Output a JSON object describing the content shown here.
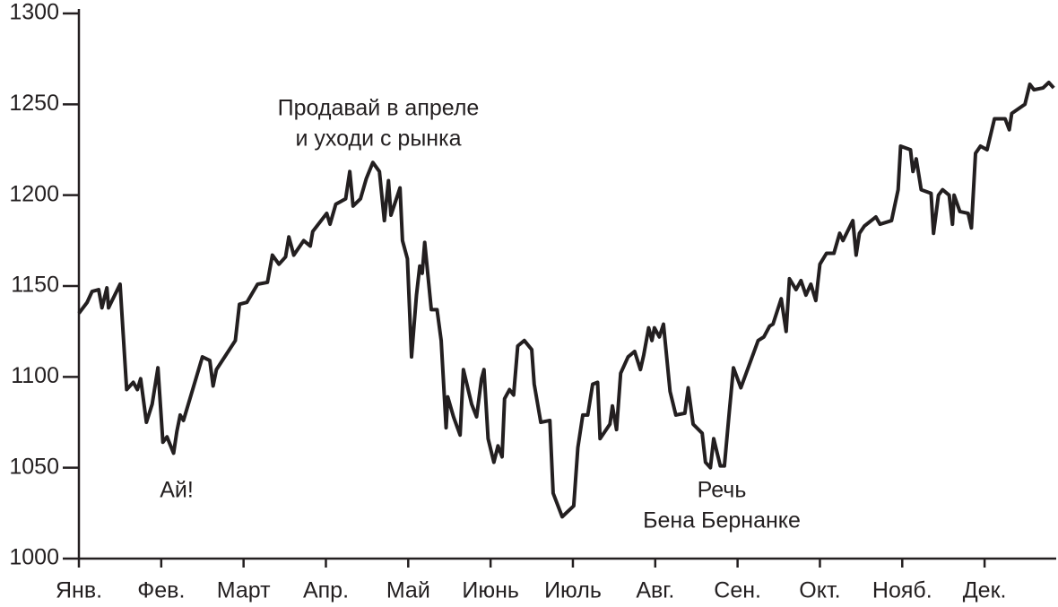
{
  "chart_data": {
    "type": "line",
    "annotations": [
      {
        "lines": [
          "Ай!"
        ]
      },
      {
        "lines": [
          "Продавай в апреле",
          "и уходи с рынка"
        ]
      },
      {
        "lines": [
          "Речь",
          "Бена Бернанке"
        ]
      }
    ],
    "xlim": [
      0,
      11.87
    ],
    "xticks": [
      {
        "value": 0,
        "label": "Янв."
      },
      {
        "value": 1,
        "label": "Фев."
      },
      {
        "value": 2,
        "label": "Март"
      },
      {
        "value": 3,
        "label": "Апр."
      },
      {
        "value": 4,
        "label": "Май"
      },
      {
        "value": 5,
        "label": "Июнь"
      },
      {
        "value": 6,
        "label": "Июль"
      },
      {
        "value": 7,
        "label": "Авг."
      },
      {
        "value": 8,
        "label": "Сен."
      },
      {
        "value": 9,
        "label": "Окт."
      },
      {
        "value": 10,
        "label": "Нояб."
      },
      {
        "value": 11,
        "label": "Дек."
      }
    ],
    "ylim": [
      1000,
      1300
    ],
    "yticks": [
      1000,
      1050,
      1100,
      1150,
      1200,
      1250,
      1300
    ],
    "grid": false,
    "series": [
      {
        "color": "#231f20",
        "x": [
          0,
          0.1,
          0.16,
          0.24,
          0.28,
          0.34,
          0.36,
          0.5,
          0.58,
          0.66,
          0.71,
          0.75,
          0.82,
          0.89,
          0.96,
          1.02,
          1.07,
          1.15,
          1.19,
          1.23,
          1.27,
          1.5,
          1.59,
          1.63,
          1.67,
          1.9,
          1.95,
          2.04,
          2.17,
          2.29,
          2.35,
          2.43,
          2.51,
          2.55,
          2.61,
          2.73,
          2.81,
          2.84,
          3.01,
          3.05,
          3.12,
          3.24,
          3.29,
          3.33,
          3.42,
          3.49,
          3.57,
          3.65,
          3.71,
          3.76,
          3.79,
          3.9,
          3.93,
          3.99,
          4.04,
          4.1,
          4.14,
          4.17,
          4.2,
          4.28,
          4.35,
          4.4,
          4.46,
          4.48,
          4.55,
          4.63,
          4.67,
          4.77,
          4.83,
          4.89,
          4.92,
          4.97,
          5.04,
          5.09,
          5.14,
          5.17,
          5.23,
          5.28,
          5.33,
          5.41,
          5.5,
          5.53,
          5.61,
          5.72,
          5.76,
          5.87,
          6.01,
          6.06,
          6.12,
          6.18,
          6.24,
          6.3,
          6.33,
          6.45,
          6.48,
          6.53,
          6.58,
          6.67,
          6.75,
          6.82,
          6.86,
          6.92,
          6.96,
          6.99,
          7.05,
          7.1,
          7.18,
          7.25,
          7.36,
          7.4,
          7.46,
          7.57,
          7.61,
          7.67,
          7.71,
          7.79,
          7.84,
          7.9,
          7.95,
          8.04,
          8.25,
          8.32,
          8.39,
          8.43,
          8.53,
          8.59,
          8.63,
          8.71,
          8.77,
          8.83,
          8.89,
          8.95,
          9.0,
          9.08,
          9.17,
          9.24,
          9.28,
          9.4,
          9.44,
          9.48,
          9.54,
          9.68,
          9.73,
          9.87,
          9.95,
          9.98,
          10.1,
          10.13,
          10.17,
          10.23,
          10.35,
          10.38,
          10.44,
          10.49,
          10.57,
          10.61,
          10.63,
          10.7,
          10.8,
          10.84,
          10.89,
          10.95,
          11.03,
          11.12,
          11.25,
          11.3,
          11.33,
          11.49,
          11.55,
          11.6,
          11.71,
          11.78,
          11.84
        ],
        "values": [
          1135,
          1141,
          1147,
          1148,
          1138,
          1149,
          1138,
          1151,
          1093,
          1097,
          1093,
          1099,
          1075,
          1085,
          1105,
          1064,
          1067,
          1058,
          1070,
          1079,
          1076,
          1111,
          1109,
          1095,
          1104,
          1120,
          1140,
          1141,
          1151,
          1152,
          1167,
          1162,
          1166,
          1177,
          1167,
          1175,
          1172,
          1180,
          1190,
          1184,
          1195,
          1198,
          1213,
          1194,
          1198,
          1209,
          1218,
          1213,
          1186,
          1208,
          1189,
          1204,
          1175,
          1165,
          1111,
          1145,
          1161,
          1157,
          1174,
          1137,
          1137,
          1120,
          1072,
          1089,
          1078,
          1068,
          1104,
          1085,
          1078,
          1099,
          1104,
          1066,
          1053,
          1062,
          1056,
          1088,
          1093,
          1090,
          1117,
          1120,
          1115,
          1096,
          1075,
          1076,
          1036,
          1023,
          1029,
          1061,
          1079,
          1079,
          1096,
          1097,
          1066,
          1074,
          1084,
          1071,
          1102,
          1111,
          1114,
          1104,
          1112,
          1127,
          1120,
          1127,
          1122,
          1129,
          1092,
          1079,
          1080,
          1094,
          1074,
          1069,
          1053,
          1050,
          1066,
          1051,
          1051,
          1081,
          1105,
          1094,
          1120,
          1122,
          1128,
          1129,
          1143,
          1125,
          1154,
          1148,
          1153,
          1145,
          1151,
          1142,
          1162,
          1168,
          1168,
          1179,
          1175,
          1186,
          1167,
          1179,
          1183,
          1188,
          1184,
          1186,
          1203,
          1227,
          1225,
          1213,
          1220,
          1203,
          1201,
          1179,
          1200,
          1203,
          1200,
          1184,
          1200,
          1191,
          1190,
          1182,
          1223,
          1227,
          1225,
          1242,
          1242,
          1236,
          1245,
          1250,
          1261,
          1258,
          1259,
          1262,
          1259
        ]
      }
    ]
  }
}
